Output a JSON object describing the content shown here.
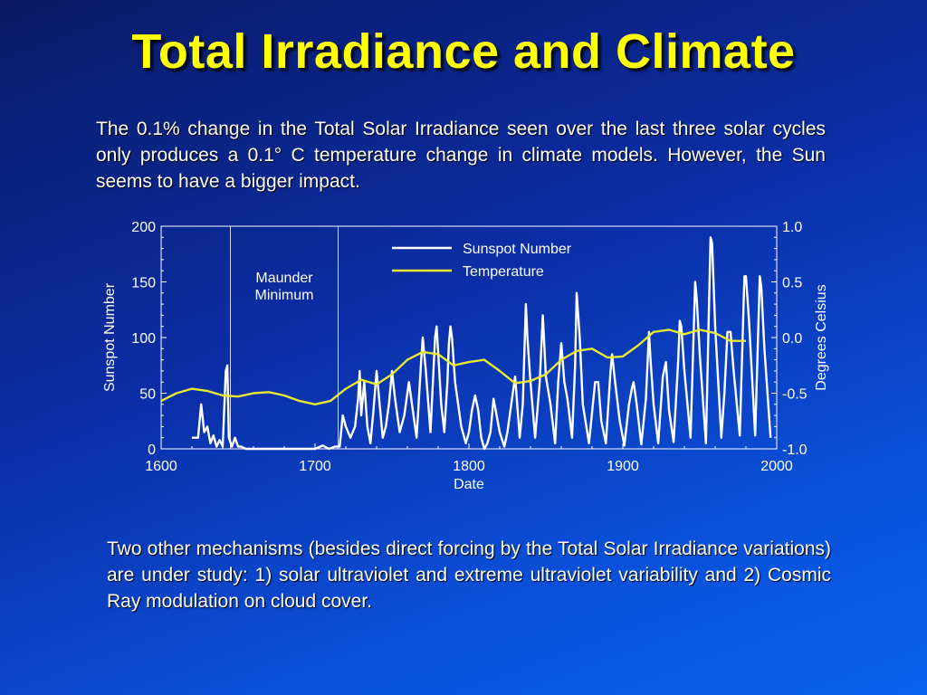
{
  "slide": {
    "title": "Total Irradiance and Climate",
    "paragraph1": "The 0.1% change in the Total Solar Irradiance seen over the last three solar cycles only produces a 0.1° C temperature change in climate models. However, the Sun seems to have a bigger impact.",
    "paragraph2": "Two other mechanisms (besides direct forcing by the Total Solar Irradiance variations) are under study: 1) solar ultraviolet and extreme ultraviolet variability and 2) Cosmic Ray modulation on cloud cover."
  },
  "colors": {
    "background": "#0b2fa8",
    "title": "#ffff00",
    "sunspot_line": "#ffffff",
    "temperature_line": "#e8e830"
  },
  "chart_data": {
    "type": "line",
    "xlabel": "Date",
    "ylabel_left": "Sunspot Number",
    "ylabel_right": "Degrees Celsius",
    "xlim": [
      1600,
      2000
    ],
    "ylim_left": [
      0,
      200
    ],
    "ylim_right": [
      -1.0,
      1.0
    ],
    "x_ticks": [
      "1600",
      "1700",
      "1800",
      "1900",
      "2000"
    ],
    "y_ticks_left": [
      "0",
      "50",
      "100",
      "150",
      "200"
    ],
    "y_ticks_right": [
      "-1.0",
      "-0.5",
      "0.0",
      "0.5",
      "1.0"
    ],
    "annotation": {
      "line1": "Maunder",
      "line2": "Minimum",
      "x_start": 1645,
      "x_end": 1715
    },
    "legend": {
      "position": "top-right",
      "entries": [
        "Sunspot Number",
        "Temperature"
      ]
    },
    "series": [
      {
        "name": "Sunspot Number",
        "axis": "left",
        "points": [
          [
            1620,
            10
          ],
          [
            1624,
            10
          ],
          [
            1626,
            40
          ],
          [
            1628,
            15
          ],
          [
            1630,
            20
          ],
          [
            1632,
            5
          ],
          [
            1634,
            12
          ],
          [
            1636,
            2
          ],
          [
            1638,
            8
          ],
          [
            1640,
            2
          ],
          [
            1642,
            70
          ],
          [
            1643,
            75
          ],
          [
            1644,
            10
          ],
          [
            1646,
            2
          ],
          [
            1648,
            10
          ],
          [
            1650,
            2
          ],
          [
            1652,
            2
          ],
          [
            1655,
            0
          ],
          [
            1660,
            0
          ],
          [
            1665,
            0
          ],
          [
            1670,
            0
          ],
          [
            1675,
            0
          ],
          [
            1680,
            0
          ],
          [
            1685,
            0
          ],
          [
            1690,
            0
          ],
          [
            1695,
            0
          ],
          [
            1700,
            0
          ],
          [
            1705,
            3
          ],
          [
            1709,
            0
          ],
          [
            1713,
            2
          ],
          [
            1716,
            2
          ],
          [
            1718,
            30
          ],
          [
            1720,
            20
          ],
          [
            1723,
            10
          ],
          [
            1726,
            20
          ],
          [
            1728,
            45
          ],
          [
            1729,
            70
          ],
          [
            1730,
            30
          ],
          [
            1732,
            60
          ],
          [
            1734,
            20
          ],
          [
            1736,
            5
          ],
          [
            1738,
            35
          ],
          [
            1740,
            70
          ],
          [
            1742,
            40
          ],
          [
            1744,
            10
          ],
          [
            1746,
            20
          ],
          [
            1748,
            40
          ],
          [
            1750,
            70
          ],
          [
            1752,
            45
          ],
          [
            1755,
            15
          ],
          [
            1758,
            30
          ],
          [
            1761,
            60
          ],
          [
            1763,
            40
          ],
          [
            1766,
            10
          ],
          [
            1769,
            80
          ],
          [
            1770,
            100
          ],
          [
            1772,
            70
          ],
          [
            1775,
            15
          ],
          [
            1778,
            100
          ],
          [
            1779,
            110
          ],
          [
            1782,
            40
          ],
          [
            1784,
            15
          ],
          [
            1786,
            60
          ],
          [
            1787,
            95
          ],
          [
            1788,
            110
          ],
          [
            1789,
            100
          ],
          [
            1791,
            60
          ],
          [
            1793,
            40
          ],
          [
            1795,
            20
          ],
          [
            1798,
            5
          ],
          [
            1800,
            15
          ],
          [
            1802,
            35
          ],
          [
            1804,
            48
          ],
          [
            1806,
            35
          ],
          [
            1808,
            10
          ],
          [
            1810,
            0
          ],
          [
            1812,
            5
          ],
          [
            1814,
            15
          ],
          [
            1816,
            45
          ],
          [
            1818,
            30
          ],
          [
            1820,
            15
          ],
          [
            1823,
            2
          ],
          [
            1825,
            15
          ],
          [
            1827,
            35
          ],
          [
            1830,
            65
          ],
          [
            1833,
            10
          ],
          [
            1835,
            40
          ],
          [
            1837,
            130
          ],
          [
            1838,
            100
          ],
          [
            1840,
            60
          ],
          [
            1843,
            10
          ],
          [
            1846,
            60
          ],
          [
            1848,
            120
          ],
          [
            1850,
            65
          ],
          [
            1853,
            40
          ],
          [
            1856,
            5
          ],
          [
            1858,
            60
          ],
          [
            1860,
            95
          ],
          [
            1862,
            60
          ],
          [
            1864,
            45
          ],
          [
            1867,
            10
          ],
          [
            1869,
            75
          ],
          [
            1870,
            140
          ],
          [
            1872,
            100
          ],
          [
            1874,
            40
          ],
          [
            1878,
            5
          ],
          [
            1882,
            60
          ],
          [
            1884,
            60
          ],
          [
            1886,
            25
          ],
          [
            1889,
            5
          ],
          [
            1892,
            70
          ],
          [
            1893,
            85
          ],
          [
            1895,
            60
          ],
          [
            1898,
            25
          ],
          [
            1901,
            3
          ],
          [
            1904,
            40
          ],
          [
            1906,
            55
          ],
          [
            1907,
            60
          ],
          [
            1909,
            40
          ],
          [
            1912,
            4
          ],
          [
            1915,
            45
          ],
          [
            1917,
            105
          ],
          [
            1918,
            80
          ],
          [
            1920,
            40
          ],
          [
            1923,
            5
          ],
          [
            1926,
            65
          ],
          [
            1928,
            78
          ],
          [
            1930,
            35
          ],
          [
            1933,
            6
          ],
          [
            1936,
            80
          ],
          [
            1937,
            115
          ],
          [
            1938,
            110
          ],
          [
            1940,
            70
          ],
          [
            1944,
            10
          ],
          [
            1947,
            150
          ],
          [
            1948,
            135
          ],
          [
            1950,
            85
          ],
          [
            1954,
            5
          ],
          [
            1957,
            190
          ],
          [
            1958,
            185
          ],
          [
            1960,
            110
          ],
          [
            1964,
            10
          ],
          [
            1966,
            50
          ],
          [
            1968,
            105
          ],
          [
            1970,
            105
          ],
          [
            1972,
            70
          ],
          [
            1976,
            12
          ],
          [
            1979,
            155
          ],
          [
            1980,
            155
          ],
          [
            1982,
            115
          ],
          [
            1986,
            12
          ],
          [
            1989,
            155
          ],
          [
            1990,
            145
          ],
          [
            1992,
            90
          ],
          [
            1996,
            10
          ]
        ]
      },
      {
        "name": "Temperature",
        "axis": "right",
        "points": [
          [
            1600,
            -0.57
          ],
          [
            1610,
            -0.5
          ],
          [
            1620,
            -0.46
          ],
          [
            1630,
            -0.48
          ],
          [
            1640,
            -0.52
          ],
          [
            1650,
            -0.53
          ],
          [
            1660,
            -0.5
          ],
          [
            1670,
            -0.49
          ],
          [
            1680,
            -0.52
          ],
          [
            1690,
            -0.57
          ],
          [
            1700,
            -0.6
          ],
          [
            1710,
            -0.57
          ],
          [
            1720,
            -0.46
          ],
          [
            1730,
            -0.38
          ],
          [
            1740,
            -0.42
          ],
          [
            1750,
            -0.33
          ],
          [
            1760,
            -0.2
          ],
          [
            1770,
            -0.13
          ],
          [
            1780,
            -0.15
          ],
          [
            1790,
            -0.25
          ],
          [
            1800,
            -0.22
          ],
          [
            1810,
            -0.2
          ],
          [
            1820,
            -0.3
          ],
          [
            1830,
            -0.41
          ],
          [
            1840,
            -0.39
          ],
          [
            1850,
            -0.33
          ],
          [
            1860,
            -0.2
          ],
          [
            1870,
            -0.12
          ],
          [
            1880,
            -0.1
          ],
          [
            1890,
            -0.18
          ],
          [
            1900,
            -0.17
          ],
          [
            1910,
            -0.07
          ],
          [
            1920,
            0.05
          ],
          [
            1930,
            0.07
          ],
          [
            1940,
            0.03
          ],
          [
            1950,
            0.07
          ],
          [
            1960,
            0.04
          ],
          [
            1970,
            -0.03
          ],
          [
            1980,
            -0.03
          ]
        ]
      }
    ]
  }
}
